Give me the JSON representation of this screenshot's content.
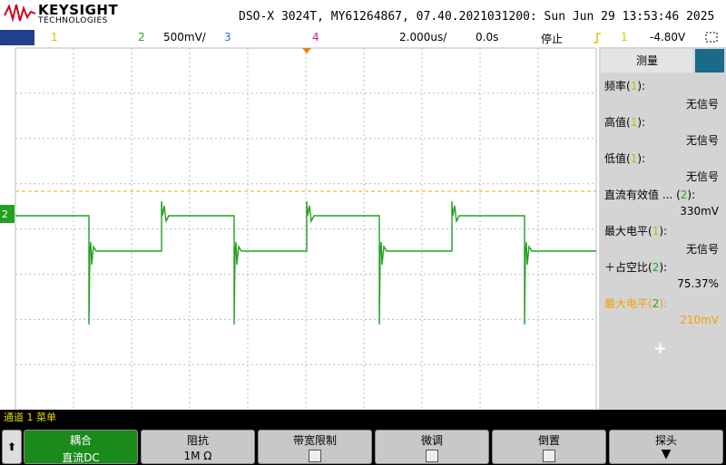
{
  "header": {
    "brand": "KEYSIGHT",
    "brand_sub": "TECHNOLOGIES",
    "title": "DSO-X 3024T, MY61264867, 07.40.2021031200: Sun Jun 29 13:53:46 2025"
  },
  "status_bar": {
    "ch1": "1",
    "ch2": "2",
    "ch2_scale": "500mV/",
    "ch3": "3",
    "ch4": "4",
    "timebase": "2.000us/",
    "delay": "0.0s",
    "run_state": "停止",
    "trigger_source": "1",
    "trigger_level": "-4.80V"
  },
  "display": {
    "channel_marker": "2"
  },
  "measurements": {
    "tab": "测量",
    "items": [
      {
        "label_start": "频率(",
        "channel": "1",
        "label_end": "):",
        "value": "无信号"
      },
      {
        "label_start": "高值(",
        "channel": "1",
        "label_end": "):",
        "value": "无信号"
      },
      {
        "label_start": "低值(",
        "channel": "1",
        "label_end": "):",
        "value": "无信号"
      },
      {
        "label_start": "直流有效值 ... (",
        "channel": "2",
        "label_end": "):",
        "value": "330mV"
      },
      {
        "label_start": "最大电平(",
        "channel": "1",
        "label_end": "):",
        "value": "无信号"
      },
      {
        "label_start": "＋占空比(",
        "channel": "2",
        "label_end": "):",
        "value": "75.37%"
      },
      {
        "label_start": "最大电平(",
        "channel": "2",
        "label_end": "):",
        "value": "210mV"
      }
    ]
  },
  "menu_title": "通道 1 菜单",
  "softkeys": [
    {
      "label": "耦合",
      "value": "直流DC"
    },
    {
      "label": "阻抗",
      "value": "1M Ω"
    },
    {
      "label": "带宽限制"
    },
    {
      "label": "微调"
    },
    {
      "label": "倒置"
    },
    {
      "label": "探头"
    }
  ]
}
